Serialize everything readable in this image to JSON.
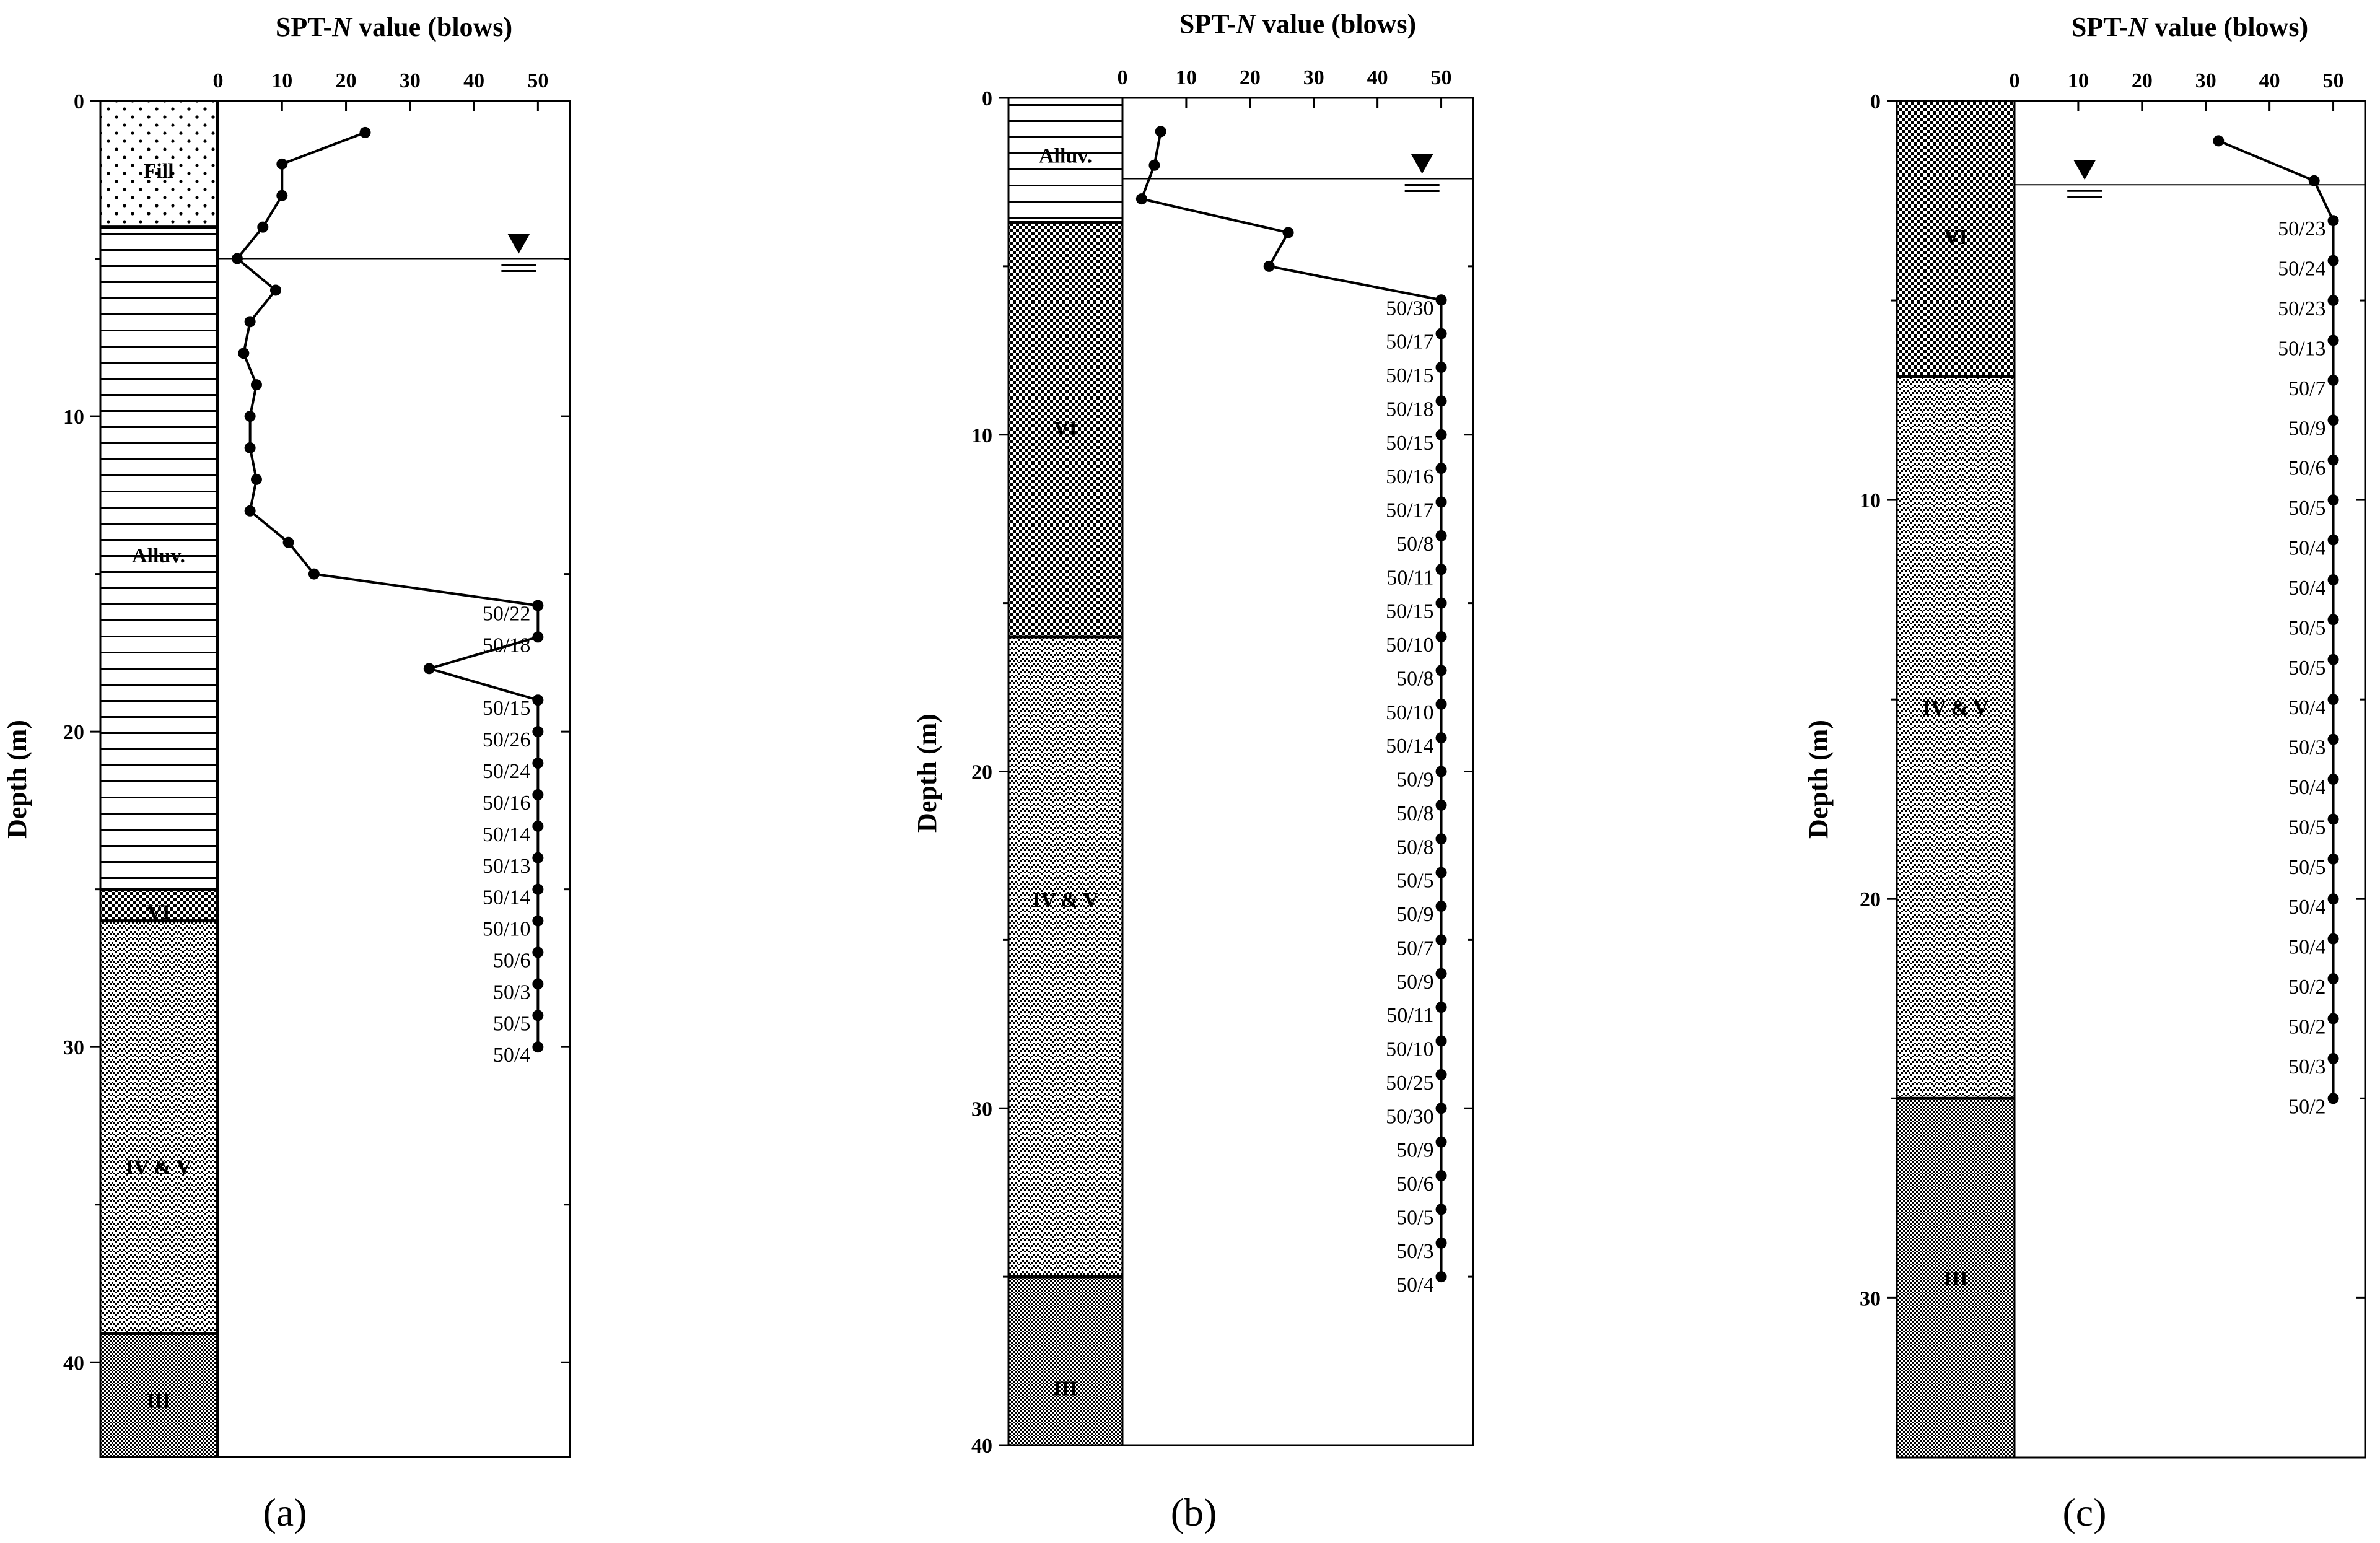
{
  "figure": {
    "x_axis_title_prefix": "SPT-",
    "x_axis_title_italic": "N",
    "x_axis_title_suffix": " value (blows)",
    "y_axis_title": "Depth (m)",
    "x_ticks": [
      0,
      10,
      20,
      30,
      40,
      50
    ],
    "colors": {
      "line": "#000000",
      "marker": "#000000",
      "background": "#ffffff"
    }
  },
  "chart_data": [
    {
      "panel_label": "(a)",
      "type": "line",
      "xlim": [
        0,
        55
      ],
      "ylim": [
        0,
        43
      ],
      "y_ticks": [
        0,
        10,
        20,
        30,
        40
      ],
      "layers": [
        {
          "name": "Fill",
          "top": 0,
          "bottom": 4,
          "pattern": "dots",
          "label": "Fill",
          "label_depth": 2.2
        },
        {
          "name": "Alluv.",
          "top": 4,
          "bottom": 25,
          "pattern": "hlines",
          "label": "Alluv.",
          "label_depth": 14.4
        },
        {
          "name": "VI",
          "top": 25,
          "bottom": 26,
          "pattern": "vi",
          "label": "VI",
          "label_depth": 25.7
        },
        {
          "name": "IV & V",
          "top": 26,
          "bottom": 39.1,
          "pattern": "ivv",
          "label": "IV & V",
          "label_depth": 33.8
        },
        {
          "name": "III",
          "top": 39.1,
          "bottom": 43,
          "pattern": "iii",
          "label": "III",
          "label_depth": 41.2
        }
      ],
      "water_table_depth": 5,
      "water_symbol_n": 47,
      "series": [
        {
          "depth": 1,
          "n": 23
        },
        {
          "depth": 2,
          "n": 10
        },
        {
          "depth": 3,
          "n": 10
        },
        {
          "depth": 4,
          "n": 7
        },
        {
          "depth": 5,
          "n": 3
        },
        {
          "depth": 6,
          "n": 9
        },
        {
          "depth": 7,
          "n": 5
        },
        {
          "depth": 8,
          "n": 4
        },
        {
          "depth": 9,
          "n": 6
        },
        {
          "depth": 10,
          "n": 5
        },
        {
          "depth": 11,
          "n": 5
        },
        {
          "depth": 12,
          "n": 6
        },
        {
          "depth": 13,
          "n": 5
        },
        {
          "depth": 14,
          "n": 11
        },
        {
          "depth": 15,
          "n": 15
        },
        {
          "depth": 16,
          "n": 50,
          "label": "50/22"
        },
        {
          "depth": 17,
          "n": 50,
          "label": "50/18"
        },
        {
          "depth": 18,
          "n": 33
        },
        {
          "depth": 19,
          "n": 50,
          "label": "50/15"
        },
        {
          "depth": 20,
          "n": 50,
          "label": "50/26"
        },
        {
          "depth": 21,
          "n": 50,
          "label": "50/24"
        },
        {
          "depth": 22,
          "n": 50,
          "label": "50/16"
        },
        {
          "depth": 23,
          "n": 50,
          "label": "50/14"
        },
        {
          "depth": 24,
          "n": 50,
          "label": "50/13"
        },
        {
          "depth": 25,
          "n": 50,
          "label": "50/14"
        },
        {
          "depth": 26,
          "n": 50,
          "label": "50/10"
        },
        {
          "depth": 27,
          "n": 50,
          "label": "50/6"
        },
        {
          "depth": 28,
          "n": 50,
          "label": "50/3"
        },
        {
          "depth": 29,
          "n": 50,
          "label": "50/5"
        },
        {
          "depth": 30,
          "n": 50,
          "label": "50/4"
        }
      ]
    },
    {
      "panel_label": "(b)",
      "type": "line",
      "xlim": [
        0,
        55
      ],
      "ylim": [
        0,
        40
      ],
      "y_ticks": [
        0,
        10,
        20,
        30,
        40
      ],
      "layers": [
        {
          "name": "Alluv.",
          "top": 0,
          "bottom": 3.7,
          "pattern": "hlines",
          "label": "Alluv.",
          "label_depth": 1.7
        },
        {
          "name": "VI",
          "top": 3.7,
          "bottom": 16,
          "pattern": "vi",
          "label": "VI",
          "label_depth": 9.8
        },
        {
          "name": "IV & V",
          "top": 16,
          "bottom": 35,
          "pattern": "ivv",
          "label": "IV & V",
          "label_depth": 23.8
        },
        {
          "name": "III",
          "top": 35,
          "bottom": 40,
          "pattern": "iii",
          "label": "III",
          "label_depth": 38.3
        }
      ],
      "water_table_depth": 2.4,
      "water_symbol_n": 47,
      "series": [
        {
          "depth": 1,
          "n": 6
        },
        {
          "depth": 2,
          "n": 5
        },
        {
          "depth": 3,
          "n": 3
        },
        {
          "depth": 4,
          "n": 26
        },
        {
          "depth": 5,
          "n": 23
        },
        {
          "depth": 6,
          "n": 50,
          "label": "50/30"
        },
        {
          "depth": 7,
          "n": 50,
          "label": "50/17"
        },
        {
          "depth": 8,
          "n": 50,
          "label": "50/15"
        },
        {
          "depth": 9,
          "n": 50,
          "label": "50/18"
        },
        {
          "depth": 10,
          "n": 50,
          "label": "50/15"
        },
        {
          "depth": 11,
          "n": 50,
          "label": "50/16"
        },
        {
          "depth": 12,
          "n": 50,
          "label": "50/17"
        },
        {
          "depth": 13,
          "n": 50,
          "label": "50/8"
        },
        {
          "depth": 14,
          "n": 50,
          "label": "50/11"
        },
        {
          "depth": 15,
          "n": 50,
          "label": "50/15"
        },
        {
          "depth": 16,
          "n": 50,
          "label": "50/10"
        },
        {
          "depth": 17,
          "n": 50,
          "label": "50/8"
        },
        {
          "depth": 18,
          "n": 50,
          "label": "50/10"
        },
        {
          "depth": 19,
          "n": 50,
          "label": "50/14"
        },
        {
          "depth": 20,
          "n": 50,
          "label": "50/9"
        },
        {
          "depth": 21,
          "n": 50,
          "label": "50/8"
        },
        {
          "depth": 22,
          "n": 50,
          "label": "50/8"
        },
        {
          "depth": 23,
          "n": 50,
          "label": "50/5"
        },
        {
          "depth": 24,
          "n": 50,
          "label": "50/9"
        },
        {
          "depth": 25,
          "n": 50,
          "label": "50/7"
        },
        {
          "depth": 26,
          "n": 50,
          "label": "50/9"
        },
        {
          "depth": 27,
          "n": 50,
          "label": "50/11"
        },
        {
          "depth": 28,
          "n": 50,
          "label": "50/10"
        },
        {
          "depth": 29,
          "n": 50,
          "label": "50/25"
        },
        {
          "depth": 30,
          "n": 50,
          "label": "50/30"
        },
        {
          "depth": 31,
          "n": 50,
          "label": "50/9"
        },
        {
          "depth": 32,
          "n": 50,
          "label": "50/6"
        },
        {
          "depth": 33,
          "n": 50,
          "label": "50/5"
        },
        {
          "depth": 34,
          "n": 50,
          "label": "50/3"
        },
        {
          "depth": 35,
          "n": 50,
          "label": "50/4"
        }
      ]
    },
    {
      "panel_label": "(c)",
      "type": "line",
      "xlim": [
        0,
        55
      ],
      "ylim": [
        0,
        34
      ],
      "y_ticks": [
        0,
        10,
        20,
        30
      ],
      "layers": [
        {
          "name": "VI",
          "top": 0,
          "bottom": 6.9,
          "pattern": "vi",
          "label": "VI",
          "label_depth": 3.4
        },
        {
          "name": "IV & V",
          "top": 6.9,
          "bottom": 25,
          "pattern": "ivv",
          "label": "IV & V",
          "label_depth": 15.2
        },
        {
          "name": "III",
          "top": 25,
          "bottom": 34,
          "pattern": "iii",
          "label": "III",
          "label_depth": 29.5
        }
      ],
      "water_table_depth": 2.1,
      "water_symbol_n": 11,
      "series": [
        {
          "depth": 1,
          "n": 32
        },
        {
          "depth": 2,
          "n": 47
        },
        {
          "depth": 3,
          "n": 50,
          "label": "50/23"
        },
        {
          "depth": 4,
          "n": 50,
          "label": "50/24"
        },
        {
          "depth": 5,
          "n": 50,
          "label": "50/23"
        },
        {
          "depth": 6,
          "n": 50,
          "label": "50/13"
        },
        {
          "depth": 7,
          "n": 50,
          "label": "50/7"
        },
        {
          "depth": 8,
          "n": 50,
          "label": "50/9"
        },
        {
          "depth": 9,
          "n": 50,
          "label": "50/6"
        },
        {
          "depth": 10,
          "n": 50,
          "label": "50/5"
        },
        {
          "depth": 11,
          "n": 50,
          "label": "50/4"
        },
        {
          "depth": 12,
          "n": 50,
          "label": "50/4"
        },
        {
          "depth": 13,
          "n": 50,
          "label": "50/5"
        },
        {
          "depth": 14,
          "n": 50,
          "label": "50/5"
        },
        {
          "depth": 15,
          "n": 50,
          "label": "50/4"
        },
        {
          "depth": 16,
          "n": 50,
          "label": "50/3"
        },
        {
          "depth": 17,
          "n": 50,
          "label": "50/4"
        },
        {
          "depth": 18,
          "n": 50,
          "label": "50/5"
        },
        {
          "depth": 19,
          "n": 50,
          "label": "50/5"
        },
        {
          "depth": 20,
          "n": 50,
          "label": "50/4"
        },
        {
          "depth": 21,
          "n": 50,
          "label": "50/4"
        },
        {
          "depth": 22,
          "n": 50,
          "label": "50/2"
        },
        {
          "depth": 23,
          "n": 50,
          "label": "50/2"
        },
        {
          "depth": 24,
          "n": 50,
          "label": "50/3"
        },
        {
          "depth": 25,
          "n": 50,
          "label": "50/2"
        }
      ]
    }
  ]
}
